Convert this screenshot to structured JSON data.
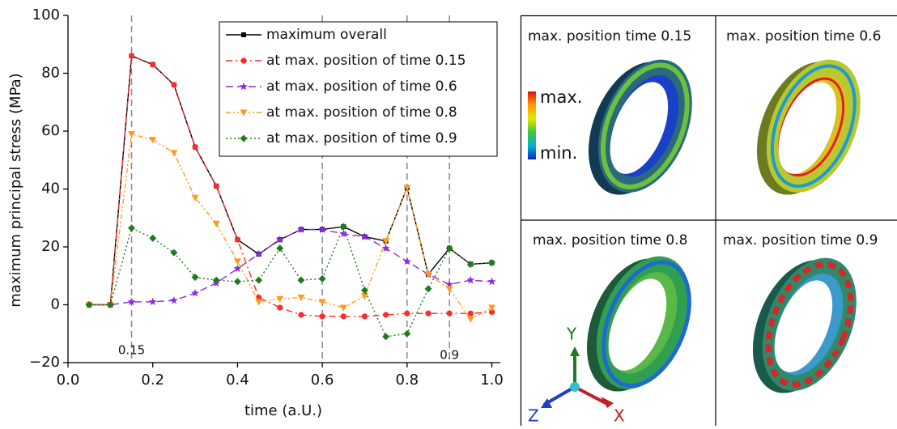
{
  "chart_data": {
    "type": "line",
    "x_label": "time (a.U.)",
    "y_label": "maximum principal stress (MPa)",
    "x": [
      0.05,
      0.1,
      0.15,
      0.2,
      0.25,
      0.3,
      0.35,
      0.4,
      0.45,
      0.5,
      0.55,
      0.6,
      0.65,
      0.7,
      0.75,
      0.8,
      0.85,
      0.9,
      0.95,
      1.0
    ],
    "series": [
      {
        "name": "maximum overall",
        "color": "#000000",
        "marker": "square",
        "line_style": "solid",
        "values": [
          0,
          0,
          86,
          83,
          76,
          54.5,
          41,
          22.5,
          17.5,
          22.5,
          26,
          26,
          27,
          23.5,
          22,
          40.5,
          10.5,
          19.5,
          14,
          14.5
        ]
      },
      {
        "name": "at max. position of time 0.15",
        "color": "#ff2a2a",
        "marker": "circle",
        "line_style": "dashdot",
        "values": [
          0,
          0,
          86,
          83,
          76,
          54.5,
          41,
          22.5,
          2.5,
          -1,
          -3.5,
          -4,
          -4,
          -4,
          -3.5,
          -3,
          -3,
          -3,
          -3,
          -2.5
        ]
      },
      {
        "name": "at max. position of time 0.6",
        "color": "#8a2be2",
        "marker": "star",
        "line_style": "dashed",
        "values": [
          0,
          0,
          1,
          1,
          1.5,
          4,
          7.5,
          12.5,
          17.5,
          22.5,
          26,
          26,
          24.5,
          23.5,
          19.5,
          15,
          10.5,
          7,
          8.5,
          8
        ]
      },
      {
        "name": "at max. position of time 0.8",
        "color": "#ff9a1f",
        "marker": "triangle-down",
        "line_style": "dashdotdot",
        "values": [
          0,
          0,
          59,
          57,
          52.5,
          37,
          28,
          15,
          1,
          2,
          2.5,
          1,
          -1,
          3,
          22,
          40.5,
          10.5,
          5.5,
          -5,
          -1
        ]
      },
      {
        "name": "at max. position of time 0.9",
        "color": "#1e7b1e",
        "marker": "diamond",
        "line_style": "dotted",
        "values": [
          0,
          0,
          26.5,
          23,
          18,
          9.5,
          8.5,
          8,
          8.5,
          19.5,
          8.5,
          9,
          27,
          5,
          -11,
          -10,
          5.5,
          19.5,
          14,
          14.5
        ]
      }
    ],
    "xlim": [
      0,
      1.02
    ],
    "ylim": [
      -20,
      100
    ],
    "xticks": [
      {
        "value": 0,
        "label": "0.0"
      },
      0.2,
      0.4,
      0.6,
      0.8,
      {
        "value": 1,
        "label": "1.0"
      }
    ],
    "yticks": [
      {
        "value": -20,
        "label": "−20"
      },
      0,
      20,
      40,
      60,
      80,
      100
    ],
    "vlines": [
      0.15,
      0.6,
      0.8,
      0.9
    ],
    "annotations": [
      {
        "text": "0.15",
        "x": 0.15
      },
      {
        "text": "0.9",
        "x": 0.9
      }
    ],
    "legend": "upper right"
  },
  "panels": [
    {
      "title": "max. position time 0.15"
    },
    {
      "title": "max. position time 0.6"
    },
    {
      "title": "max. position time 0.8"
    },
    {
      "title": "max. position time 0.9"
    }
  ],
  "colorbar": {
    "max_label": "max.",
    "min_label": "min."
  },
  "axes_triad": {
    "x": "X",
    "y": "Y",
    "z": "Z"
  }
}
